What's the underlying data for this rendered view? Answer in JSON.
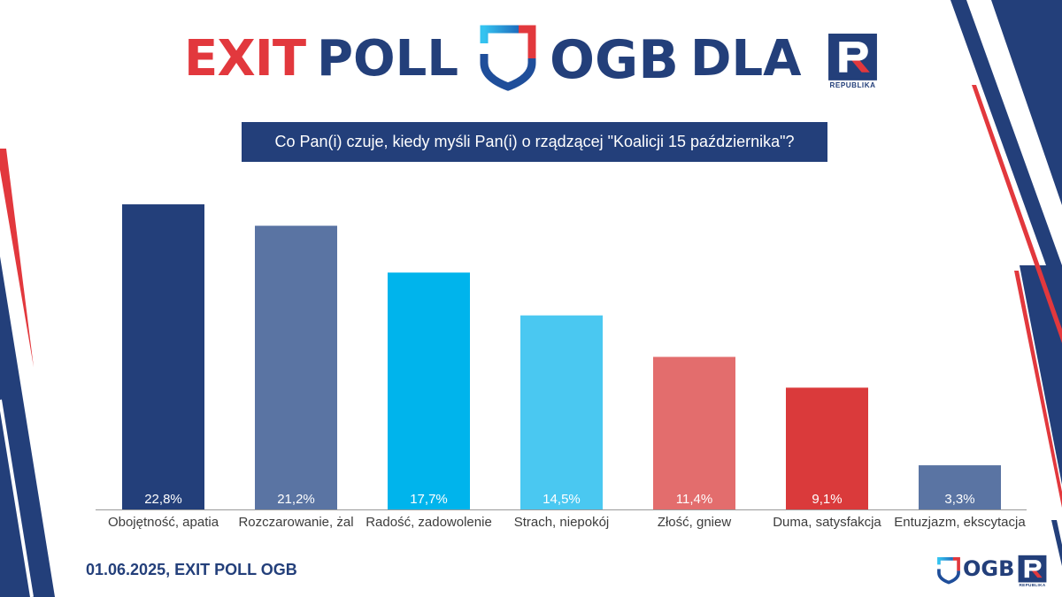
{
  "theme": {
    "navy": "#233f7a",
    "red": "#e2383d",
    "cyan": "#31c0ef",
    "blue": "#1f4e9a",
    "label_gray": "#3c3c3c",
    "axis_gray": "#9a9a9a",
    "background": "#ffffff"
  },
  "header": {
    "exit_word": "EXIT",
    "poll_word": "POLL",
    "dla_word": "DLA",
    "ogb_icon": "ogb-shield-icon",
    "republika_icon": "republika-r-icon"
  },
  "brand": {
    "ogb": "OGB",
    "republika": "REPUBLIKA"
  },
  "chart_data": {
    "type": "bar",
    "title": "Co Pan(i) czuje, kiedy myśli Pan(i) o rządzącej \"Koalicji 15 października\"?",
    "categories": [
      "Obojętność, apatia",
      "Rozczarowanie, żal",
      "Radość, zadowolenie",
      "Strach, niepokój",
      "Złość, gniew",
      "Duma, satysfakcja",
      "Entuzjazm, ekscytacja"
    ],
    "values": [
      22.8,
      21.2,
      17.7,
      14.5,
      11.4,
      9.1,
      3.3
    ],
    "value_labels": [
      "22,8%",
      "21,2%",
      "17,7%",
      "14,5%",
      "11,4%",
      "9,1%",
      "3,3%"
    ],
    "colors": [
      "#233f7a",
      "#5a74a3",
      "#00b4ec",
      "#4ac8f1",
      "#e36d6d",
      "#da3a3b",
      "#5a74a3"
    ],
    "xlabel": "",
    "ylabel": "",
    "grid": false
  },
  "footer": {
    "source": "01.06.2025, EXIT POLL OGB"
  }
}
